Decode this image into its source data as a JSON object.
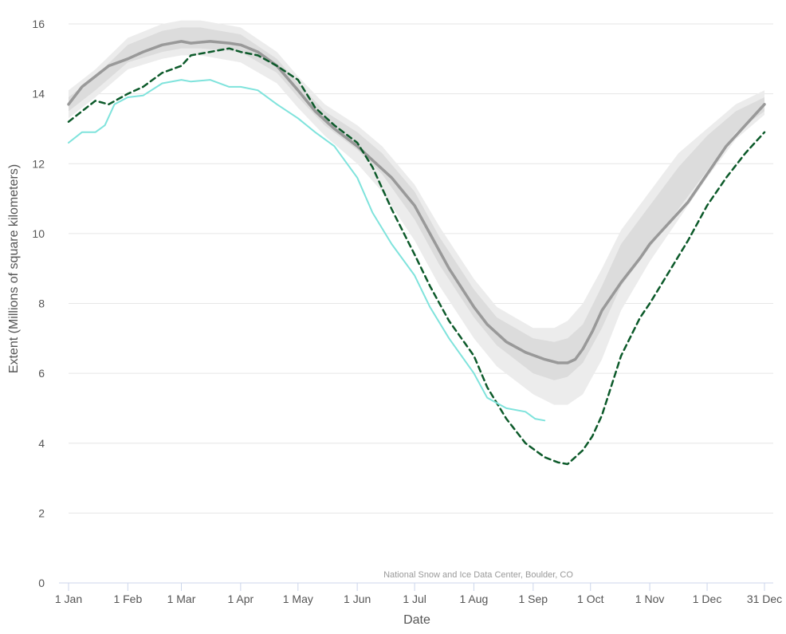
{
  "chart_data": {
    "type": "line",
    "xlabel": "Date",
    "ylabel": "Extent (Millions of square kilometers)",
    "credit": "National Snow and Ice Data Center, Boulder, CO",
    "x_unit": "day of year",
    "xlim": [
      1,
      365
    ],
    "ylim": [
      0,
      16
    ],
    "y_ticks": [
      0,
      2,
      4,
      6,
      8,
      10,
      12,
      14,
      16
    ],
    "x_ticks": [
      {
        "label": "1 Jan",
        "day": 1
      },
      {
        "label": "1 Feb",
        "day": 32
      },
      {
        "label": "1 Mar",
        "day": 60
      },
      {
        "label": "1 Apr",
        "day": 91
      },
      {
        "label": "1 May",
        "day": 121
      },
      {
        "label": "1 Jun",
        "day": 152
      },
      {
        "label": "1 Jul",
        "day": 182
      },
      {
        "label": "1 Aug",
        "day": 213
      },
      {
        "label": "1 Sep",
        "day": 244
      },
      {
        "label": "1 Oct",
        "day": 274
      },
      {
        "label": "1 Nov",
        "day": 305
      },
      {
        "label": "1 Dec",
        "day": 335
      },
      {
        "label": "31 Dec",
        "day": 365
      }
    ],
    "grid": true,
    "colors": {
      "median": "#999999",
      "band_outer": "#ececec",
      "band_inner": "#dcdcdc",
      "dashed": "#0c5a2a",
      "current": "#7fe3dc",
      "grid": "#e6e6e6",
      "axis": "#ccd6eb"
    },
    "band_outer": {
      "x": [
        1,
        15,
        32,
        50,
        60,
        70,
        91,
        110,
        121,
        135,
        152,
        165,
        182,
        195,
        213,
        225,
        244,
        255,
        262,
        270,
        280,
        290,
        305,
        320,
        335,
        350,
        365
      ],
      "lower": [
        13.3,
        13.9,
        14.7,
        15.0,
        15.1,
        15.1,
        14.9,
        14.3,
        13.6,
        12.8,
        12.0,
        11.2,
        9.8,
        8.5,
        7.0,
        6.2,
        5.4,
        5.1,
        5.1,
        5.4,
        6.4,
        7.8,
        9.2,
        10.4,
        11.6,
        12.7,
        13.4
      ],
      "upper": [
        14.1,
        14.7,
        15.6,
        16.0,
        16.1,
        16.1,
        15.9,
        15.2,
        14.5,
        13.7,
        13.1,
        12.5,
        11.4,
        10.2,
        8.7,
        7.9,
        7.3,
        7.3,
        7.5,
        8.0,
        9.0,
        10.1,
        11.2,
        12.3,
        13.0,
        13.7,
        14.1
      ]
    },
    "band_inner": {
      "x": [
        1,
        15,
        32,
        50,
        60,
        70,
        91,
        110,
        121,
        135,
        152,
        165,
        182,
        195,
        213,
        225,
        244,
        255,
        262,
        270,
        280,
        290,
        305,
        320,
        335,
        350,
        365
      ],
      "lower": [
        13.5,
        14.1,
        14.9,
        15.2,
        15.3,
        15.3,
        15.2,
        14.6,
        13.9,
        13.1,
        12.4,
        11.7,
        10.4,
        9.1,
        7.6,
        6.8,
        6.0,
        5.8,
        5.9,
        6.3,
        7.3,
        8.5,
        9.6,
        10.7,
        11.8,
        12.9,
        13.5
      ],
      "upper": [
        13.9,
        14.5,
        15.4,
        15.8,
        15.9,
        15.9,
        15.7,
        15.0,
        14.3,
        13.5,
        12.9,
        12.3,
        11.2,
        9.9,
        8.4,
        7.6,
        7.0,
        6.9,
        7.0,
        7.4,
        8.5,
        9.7,
        10.8,
        11.9,
        12.8,
        13.5,
        13.9
      ]
    },
    "series": [
      {
        "role": "median",
        "x": [
          1,
          8,
          15,
          22,
          32,
          40,
          50,
          60,
          65,
          75,
          85,
          91,
          100,
          110,
          121,
          130,
          140,
          152,
          160,
          170,
          182,
          190,
          200,
          213,
          220,
          230,
          240,
          250,
          257,
          262,
          266,
          270,
          275,
          280,
          290,
          300,
          305,
          315,
          325,
          335,
          345,
          355,
          365
        ],
        "y": [
          13.7,
          14.2,
          14.5,
          14.8,
          15.0,
          15.2,
          15.4,
          15.5,
          15.45,
          15.5,
          15.45,
          15.4,
          15.2,
          14.8,
          14.1,
          13.5,
          13.0,
          12.5,
          12.1,
          11.6,
          10.8,
          10.0,
          9.0,
          7.9,
          7.4,
          6.9,
          6.6,
          6.4,
          6.3,
          6.3,
          6.4,
          6.7,
          7.2,
          7.8,
          8.6,
          9.3,
          9.7,
          10.3,
          10.9,
          11.7,
          12.5,
          13.1,
          13.7
        ]
      },
      {
        "role": "dashed",
        "x": [
          1,
          8,
          15,
          22,
          32,
          40,
          50,
          60,
          65,
          75,
          85,
          91,
          100,
          110,
          121,
          130,
          140,
          152,
          160,
          170,
          182,
          190,
          200,
          213,
          220,
          230,
          240,
          250,
          257,
          262,
          266,
          270,
          275,
          280,
          290,
          300,
          305,
          315,
          325,
          335,
          345,
          355,
          365
        ],
        "y": [
          13.2,
          13.5,
          13.8,
          13.7,
          14.0,
          14.2,
          14.6,
          14.8,
          15.1,
          15.2,
          15.3,
          15.2,
          15.1,
          14.8,
          14.4,
          13.6,
          13.1,
          12.6,
          11.9,
          10.7,
          9.4,
          8.5,
          7.5,
          6.5,
          5.6,
          4.7,
          4.0,
          3.6,
          3.45,
          3.4,
          3.6,
          3.8,
          4.2,
          4.8,
          6.5,
          7.6,
          8.0,
          8.9,
          9.8,
          10.8,
          11.6,
          12.3,
          12.9
        ]
      },
      {
        "role": "current",
        "x": [
          1,
          8,
          15,
          20,
          25,
          32,
          40,
          50,
          60,
          65,
          75,
          85,
          91,
          100,
          110,
          121,
          130,
          140,
          152,
          160,
          170,
          182,
          190,
          200,
          213,
          220,
          230,
          240,
          245,
          250
        ],
        "y": [
          12.6,
          12.9,
          12.9,
          13.1,
          13.7,
          13.9,
          13.95,
          14.3,
          14.4,
          14.35,
          14.4,
          14.2,
          14.2,
          14.1,
          13.7,
          13.3,
          12.9,
          12.5,
          11.6,
          10.6,
          9.7,
          8.8,
          7.9,
          7.0,
          6.0,
          5.3,
          5.0,
          4.9,
          4.7,
          4.65
        ]
      }
    ]
  }
}
